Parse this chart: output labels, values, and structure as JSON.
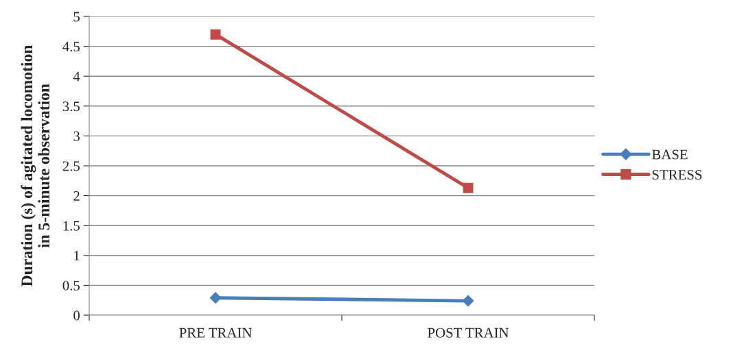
{
  "chart_data": {
    "type": "line",
    "ylabel": "Duration (s) of agitated locomotion\nin 5-minute observation",
    "categories": [
      "PRE TRAIN",
      "POST TRAIN"
    ],
    "series": [
      {
        "name": "BASE",
        "color": "#4a7ebb",
        "values": [
          0.29,
          0.24
        ],
        "marker": "diamond"
      },
      {
        "name": "STRESS",
        "color": "#be4b48",
        "values": [
          4.7,
          2.13
        ],
        "marker": "square"
      }
    ],
    "ylim": [
      0,
      5
    ],
    "yticks": [
      0,
      0.5,
      1,
      1.5,
      2,
      2.5,
      3,
      3.5,
      4,
      4.5,
      5
    ],
    "grid": "y",
    "legend": "right",
    "line_style": "solid"
  }
}
